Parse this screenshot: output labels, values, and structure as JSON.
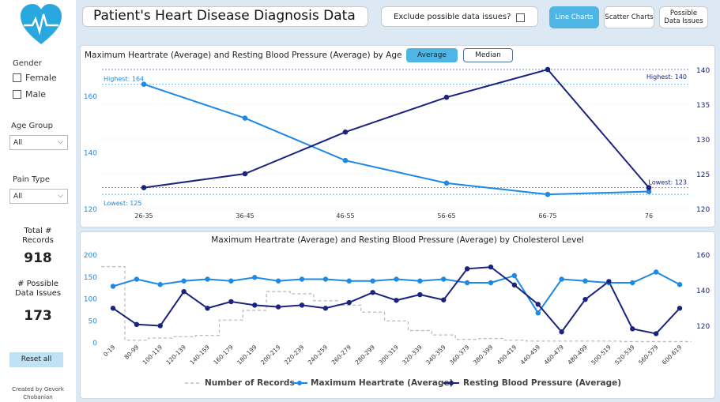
{
  "sidebar": {
    "gender_label": "Gender",
    "gender_options": [
      "Female",
      "Male"
    ],
    "age_group_label": "Age Group",
    "age_group_value": "All",
    "pain_type_label": "Pain Type",
    "pain_type_value": "All",
    "total_records_label": "Total # Records",
    "total_records_value": "918",
    "possible_issues_label": "# Possible Data Issues",
    "possible_issues_value": "173",
    "reset_label": "Reset all",
    "credit": "Created by Gevork Chobanian"
  },
  "header": {
    "title": "Patient's Heart Disease Diagnosis Data",
    "exclude_label": "Exclude possible data issues?",
    "nav": [
      {
        "label": "Line Charts",
        "active": true
      },
      {
        "label": "Scatter Charts",
        "active": false
      },
      {
        "label": "Possible Data Issues",
        "active": false
      }
    ]
  },
  "colors": {
    "heartrate": "#1e88e5",
    "bp": "#1a237e",
    "records": "#bdbdbd",
    "accent": "#4fb5e5"
  },
  "chart_age": {
    "title": "Maximum Heartrate (Average) and Resting Blood Pressure (Average) by Age",
    "toggle_average": "Average",
    "toggle_median": "Median",
    "chart_data": {
      "type": "line",
      "categories": [
        "26-35",
        "36-45",
        "46-55",
        "56-65",
        "66-75",
        "76"
      ],
      "series": [
        {
          "name": "Maximum Heartrate (Average)",
          "axis": "left",
          "values": [
            164,
            152,
            137,
            129,
            125,
            126
          ]
        },
        {
          "name": "Resting Blood Pressure (Average)",
          "axis": "right",
          "values": [
            123,
            125,
            131,
            136,
            140,
            123
          ]
        }
      ],
      "left_ylim": [
        120,
        170
      ],
      "left_ticks": [
        "120",
        "140",
        "160"
      ],
      "right_ylim": [
        120,
        140
      ],
      "right_ticks": [
        "120",
        "125",
        "130",
        "135",
        "140"
      ],
      "annotations": {
        "left_highest": "Highest: 164",
        "left_lowest": "Lowest: 125",
        "right_highest": "Highest: 140",
        "right_lowest": "Lowest: 123"
      }
    }
  },
  "chart_chol": {
    "title": "Maximum Heartrate (Average) and Resting Blood Pressure (Average) by Cholesterol Level",
    "chart_data": {
      "type": "line",
      "categories": [
        "0-19",
        "80-99",
        "100-119",
        "120-139",
        "140-159",
        "160-179",
        "180-199",
        "200-219",
        "220-239",
        "240-259",
        "260-279",
        "280-299",
        "300-319",
        "320-339",
        "340-359",
        "360-379",
        "380-399",
        "400-419",
        "440-459",
        "460-479",
        "480-499",
        "500-519",
        "520-539",
        "560-579",
        "600-619"
      ],
      "series": [
        {
          "name": "Number of Records",
          "axis": "left",
          "values": [
            172,
            4,
            9,
            12,
            15,
            50,
            72,
            115,
            110,
            94,
            84,
            68,
            48,
            26,
            16,
            6,
            8,
            4,
            2,
            2,
            2,
            2,
            1,
            1,
            1
          ]
        },
        {
          "name": "Maximum Heartrate (Average)",
          "axis": "right",
          "values": [
            142,
            146,
            143,
            145,
            146,
            145,
            147,
            145,
            146,
            146,
            145,
            145,
            146,
            145,
            146,
            144,
            144,
            148,
            127,
            146,
            145,
            144,
            144,
            150,
            143
          ]
        },
        {
          "name": "Resting Blood Pressure (Average)",
          "axis": "left",
          "values": [
            77,
            40,
            37,
            115,
            77,
            92,
            84,
            80,
            84,
            77,
            90,
            113,
            95,
            108,
            96,
            167,
            171,
            130,
            86,
            23,
            97,
            138,
            30,
            19,
            77
          ]
        }
      ],
      "left_ylim": [
        0,
        200
      ],
      "left_ticks": [
        "0",
        "50",
        "100",
        "150",
        "200"
      ],
      "right_ylim": [
        110,
        160
      ],
      "right_ticks": [
        "120",
        "140",
        "160"
      ],
      "legend": [
        "Number of Records",
        "Maximum Heartrate (Average)",
        "Resting Blood Pressure (Average)"
      ]
    }
  }
}
